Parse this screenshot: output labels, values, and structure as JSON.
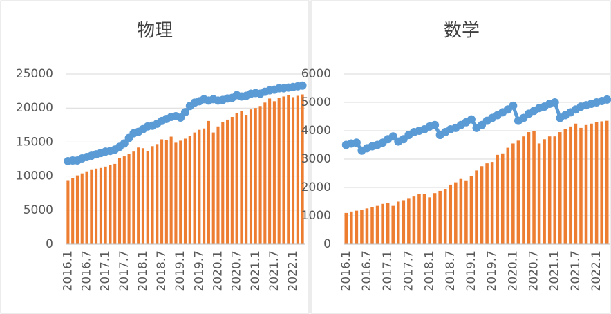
{
  "chart_data": [
    {
      "type": "bar_line",
      "title": "物理",
      "categories": [
        "2016.1",
        null,
        null,
        null,
        "2016.7",
        null,
        null,
        null,
        "2017.1",
        null,
        null,
        null,
        "2017.7",
        null,
        null,
        null,
        "2018.1",
        null,
        null,
        null,
        "2018.7",
        null,
        null,
        null,
        "2019.1",
        null,
        null,
        null,
        "2019.7",
        null,
        null,
        null,
        "2020.1",
        null,
        null,
        null,
        "2020.7",
        null,
        null,
        null,
        "2021.1",
        null,
        null,
        null,
        "2021.7",
        null,
        null,
        null,
        "2022.1",
        null,
        null
      ],
      "series": [
        {
          "type": "bar",
          "color": "#ed7d31",
          "values": [
            9400,
            9700,
            10100,
            10400,
            10700,
            10900,
            11100,
            11200,
            11400,
            11600,
            11800,
            12700,
            12900,
            13300,
            13600,
            14200,
            14100,
            13700,
            14400,
            14700,
            15400,
            15300,
            15800,
            14900,
            15200,
            15500,
            15900,
            16400,
            16800,
            17000,
            18100,
            16400,
            17300,
            17900,
            18300,
            18700,
            19300,
            19600,
            19000,
            19800,
            20000,
            20300,
            20800,
            21400,
            21000,
            21500,
            21700,
            21900,
            21600,
            21800,
            22000
          ]
        },
        {
          "type": "line",
          "color": "#5b9bd5",
          "values": [
            12200,
            12300,
            12300,
            12600,
            12800,
            13000,
            13200,
            13400,
            13600,
            13700,
            13900,
            14300,
            14800,
            15600,
            16300,
            16500,
            16900,
            17300,
            17400,
            17700,
            18100,
            18400,
            18700,
            18800,
            18600,
            19400,
            20300,
            20800,
            21000,
            21300,
            21100,
            21300,
            21100,
            21200,
            21400,
            21500,
            21900,
            21700,
            21800,
            22100,
            22200,
            22100,
            22400,
            22600,
            22700,
            22900,
            22900,
            23000,
            23100,
            23200,
            23300
          ]
        }
      ],
      "ylim": [
        0,
        25000
      ],
      "yticks": [
        0,
        5000,
        10000,
        15000,
        20000,
        25000
      ],
      "grid": true
    },
    {
      "type": "bar_line",
      "title": "数学",
      "categories": [
        "2016.1",
        null,
        null,
        null,
        "2016.7",
        null,
        null,
        null,
        "2017.1",
        null,
        null,
        null,
        "2017.7",
        null,
        null,
        null,
        "2018.1",
        null,
        null,
        null,
        "2018.7",
        null,
        null,
        null,
        "2019.1",
        null,
        null,
        null,
        "2019.7",
        null,
        null,
        null,
        "2020.1",
        null,
        null,
        null,
        "2020.7",
        null,
        null,
        null,
        "2021.1",
        null,
        null,
        null,
        "2021.7",
        null,
        null,
        null,
        "2022.1",
        null,
        null
      ],
      "series": [
        {
          "type": "bar",
          "color": "#ed7d31",
          "values": [
            1100,
            1150,
            1180,
            1220,
            1260,
            1300,
            1350,
            1420,
            1460,
            1350,
            1500,
            1550,
            1600,
            1680,
            1760,
            1780,
            1650,
            1800,
            1880,
            1950,
            2100,
            2180,
            2300,
            2250,
            2400,
            2600,
            2750,
            2850,
            2900,
            3150,
            3200,
            3400,
            3550,
            3650,
            3800,
            3950,
            4000,
            3550,
            3700,
            3800,
            3800,
            3950,
            4050,
            4150,
            4250,
            4100,
            4200,
            4250,
            4300,
            4330,
            4350
          ]
        },
        {
          "type": "line",
          "color": "#5b9bd5",
          "values": [
            3500,
            3550,
            3580,
            3300,
            3380,
            3450,
            3500,
            3580,
            3700,
            3800,
            3620,
            3700,
            3850,
            3950,
            4000,
            4050,
            4150,
            4200,
            3850,
            3950,
            4050,
            4100,
            4200,
            4300,
            4400,
            4100,
            4200,
            4350,
            4450,
            4550,
            4650,
            4750,
            4880,
            4350,
            4450,
            4600,
            4700,
            4800,
            4850,
            4950,
            5000,
            4450,
            4550,
            4650,
            4750,
            4850,
            4900,
            4950,
            5000,
            5050,
            5100
          ]
        }
      ],
      "ylim": [
        0,
        6000
      ],
      "yticks": [
        0,
        1000,
        2000,
        3000,
        4000,
        5000,
        6000
      ],
      "grid": true
    }
  ]
}
